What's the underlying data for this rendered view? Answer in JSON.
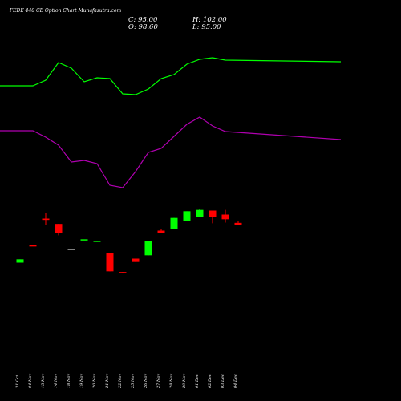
{
  "header": {
    "title": "FEDE 440 CE Option Chart Munafasutra.com",
    "close": "C: 95.00",
    "open": "O: 98.60",
    "high": "H: 102.00",
    "low": "L: 95.00"
  },
  "chart_data": {
    "type": "candlestick",
    "categories": [
      "31 Oct",
      "04 Nov",
      "13 Nov",
      "14 Nov",
      "18 Nov",
      "19 Nov",
      "20 Nov",
      "21 Nov",
      "22 Nov",
      "25 Nov",
      "26 Nov",
      "27 Nov",
      "28 Nov",
      "29 Nov",
      "01 Dec",
      "02 Dec",
      "03 Dec",
      "04 Dec"
    ],
    "candles": [
      {
        "open": 44,
        "high": 44,
        "low": 39,
        "close": 39,
        "direction": "up"
      },
      {
        "open": 65,
        "high": 65,
        "low": 65,
        "close": 65,
        "direction": "down"
      },
      {
        "open": 105,
        "high": 114,
        "low": 96,
        "close": 103,
        "direction": "down"
      },
      {
        "open": 97,
        "high": 97,
        "low": 80,
        "close": 83,
        "direction": "down"
      },
      {
        "open": 60,
        "high": 60,
        "low": 60,
        "close": 60,
        "direction": "flat"
      },
      {
        "open": 74,
        "high": 74,
        "low": 74,
        "close": 74,
        "direction": "up"
      },
      {
        "open": 70,
        "high": 72,
        "low": 70,
        "close": 72,
        "direction": "up"
      },
      {
        "open": 54,
        "high": 54,
        "low": 26,
        "close": 26,
        "direction": "down"
      },
      {
        "open": 25,
        "high": 25,
        "low": 24,
        "close": 24,
        "direction": "down"
      },
      {
        "open": 45,
        "high": 45,
        "low": 40,
        "close": 40,
        "direction": "down"
      },
      {
        "open": 50,
        "high": 72,
        "low": 50,
        "close": 72,
        "direction": "up"
      },
      {
        "open": 84,
        "high": 89,
        "low": 84,
        "close": 87,
        "direction": "down"
      },
      {
        "open": 90,
        "high": 106,
        "low": 90,
        "close": 106,
        "direction": "up"
      },
      {
        "open": 101,
        "high": 116,
        "low": 101,
        "close": 116,
        "direction": "up"
      },
      {
        "open": 107,
        "high": 120,
        "low": 107,
        "close": 118,
        "direction": "up"
      },
      {
        "open": 117,
        "high": 117,
        "low": 98,
        "close": 108,
        "direction": "down"
      },
      {
        "open": 111,
        "high": 118,
        "low": 99,
        "close": 104,
        "direction": "down"
      },
      {
        "open": 98.6,
        "high": 102,
        "low": 95,
        "close": 95,
        "direction": "down"
      }
    ],
    "ylim": [
      0,
      160
    ],
    "indicator_upper": {
      "color": "#00ff00",
      "values": [
        107,
        107,
        100,
        78,
        85,
        102,
        97,
        98,
        117,
        118,
        111,
        98,
        93,
        80,
        74,
        72,
        75,
        77
      ]
    },
    "indicator_lower": {
      "color": "#b000b0",
      "values": [
        163,
        163,
        171,
        181,
        202,
        200,
        204,
        231,
        234,
        214,
        190,
        185,
        170,
        155,
        146,
        157,
        164,
        174
      ]
    },
    "colors": {
      "up": "#00ff00",
      "down": "#ff0000",
      "flat": "#ffffff"
    }
  }
}
